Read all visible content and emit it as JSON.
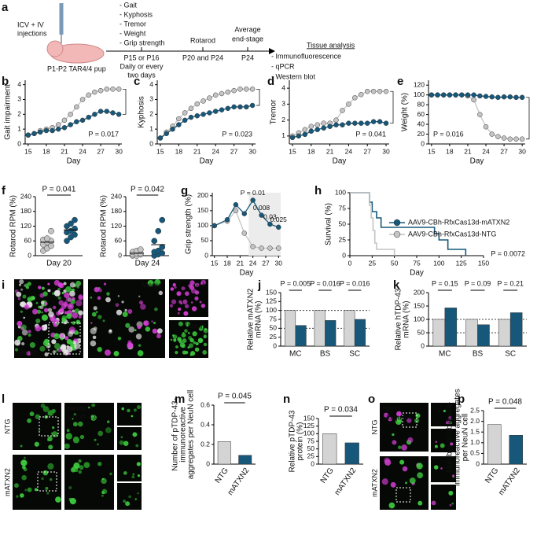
{
  "panels": [
    "a",
    "b",
    "c",
    "d",
    "e",
    "f",
    "g",
    "h",
    "i",
    "j",
    "k",
    "l",
    "m",
    "n",
    "o",
    "p"
  ],
  "diagram": {
    "injection": [
      "ICV + IV",
      "injections"
    ],
    "pup": "P1-P2 TAR4/4 pup",
    "measures": [
      "- Gait",
      "- Kyphosis",
      "- Tremor",
      "- Weight",
      "- Grip strength"
    ],
    "start": [
      "P15 or P16",
      "Daily or every",
      "two days"
    ],
    "rotarod": "Rotarod",
    "rotarod_days": "P20 and P24",
    "endstage": [
      "Average",
      "end-stage"
    ],
    "endstage_day": "P24",
    "tissue_title": "Tissue analysis",
    "tissue": [
      "- Immunofluorescence",
      "- qPCR",
      "- Western blot"
    ]
  },
  "micrographs": {
    "i": {
      "labels": [
        "Merge",
        "Merge",
        "HA",
        "NeuN"
      ]
    },
    "l": {
      "rows": [
        "NTG",
        "mATXN2"
      ],
      "channels": [
        "NeuN",
        "pTDP-43"
      ]
    },
    "o": {
      "rows": [
        "NTG",
        "mATXN2"
      ],
      "channels": [
        "NeuN",
        "Ubiquitin"
      ]
    }
  },
  "chart_data": [
    {
      "type": "line",
      "xlabel": "Day",
      "ylabel": [
        "Gait impairment"
      ],
      "x": [
        15,
        16,
        17,
        18,
        19,
        20,
        21,
        22,
        23,
        24,
        25,
        26,
        27,
        28,
        29,
        30
      ],
      "xlim": [
        14.5,
        30.5
      ],
      "xticks": [
        15,
        18,
        21,
        24,
        27,
        30
      ],
      "ylim": [
        0,
        4.3
      ],
      "yticks": [
        0,
        1,
        2,
        3,
        4
      ],
      "series": [
        {
          "color": "#c4c4c4",
          "values": [
            0.6,
            0.7,
            0.9,
            1.0,
            1.1,
            1.3,
            1.6,
            2.0,
            2.5,
            3.0,
            3.3,
            3.5,
            3.6,
            3.7,
            3.7,
            3.7
          ]
        },
        {
          "color": "#17587a",
          "values": [
            0.6,
            0.7,
            0.8,
            0.9,
            0.9,
            1.0,
            1.1,
            1.3,
            1.5,
            1.6,
            1.8,
            2.0,
            2.2,
            2.2,
            2.1,
            2.0
          ]
        }
      ],
      "annotations": [
        "P = 0.017"
      ]
    },
    {
      "type": "line",
      "xlabel": "Day",
      "ylabel": [
        "Kyphosis"
      ],
      "x": [
        15,
        16,
        17,
        18,
        19,
        20,
        21,
        22,
        23,
        24,
        25,
        26,
        27,
        28,
        29,
        30
      ],
      "xlim": [
        14.5,
        30.5
      ],
      "xticks": [
        15,
        18,
        21,
        24,
        27,
        30
      ],
      "ylim": [
        0,
        4.3
      ],
      "yticks": [
        0,
        1,
        2,
        3,
        4
      ],
      "series": [
        {
          "color": "#c4c4c4",
          "values": [
            0.4,
            0.8,
            1.2,
            1.7,
            2.1,
            2.4,
            2.7,
            2.9,
            3.1,
            3.3,
            3.4,
            3.5,
            3.6,
            3.7,
            3.7,
            3.7
          ]
        },
        {
          "color": "#17587a",
          "values": [
            0.4,
            0.7,
            1.0,
            1.3,
            1.6,
            1.8,
            1.9,
            2.0,
            2.1,
            2.2,
            2.3,
            2.4,
            2.5,
            2.5,
            2.5,
            2.6
          ]
        }
      ],
      "annotations": [
        "P = 0.023"
      ]
    },
    {
      "type": "line",
      "xlabel": "Day",
      "ylabel": [
        "Tremor"
      ],
      "x": [
        15,
        16,
        17,
        18,
        19,
        20,
        21,
        22,
        23,
        24,
        25,
        26,
        27,
        28,
        29,
        30
      ],
      "xlim": [
        14.5,
        30.5
      ],
      "xticks": [
        15,
        18,
        21,
        24,
        27,
        30
      ],
      "ylim": [
        0.5,
        4.5
      ],
      "yticks": [
        1,
        2,
        3,
        4
      ],
      "series": [
        {
          "color": "#c4c4c4",
          "values": [
            1.0,
            1.2,
            1.4,
            1.6,
            1.7,
            1.8,
            1.8,
            2.0,
            2.6,
            3.0,
            3.4,
            3.6,
            3.8,
            3.8,
            3.8,
            3.8
          ]
        },
        {
          "color": "#17587a",
          "values": [
            0.9,
            1.0,
            1.1,
            1.3,
            1.4,
            1.5,
            1.6,
            1.7,
            1.7,
            1.8,
            1.8,
            1.8,
            1.8,
            1.9,
            1.9,
            1.8
          ]
        }
      ],
      "annotations": [
        "P = 0.041"
      ]
    },
    {
      "type": "line",
      "xlabel": "Day",
      "ylabel": [
        "Weight (%)"
      ],
      "x": [
        15,
        16,
        17,
        18,
        19,
        20,
        21,
        22,
        23,
        24,
        25,
        26,
        27,
        28,
        29,
        30
      ],
      "xlim": [
        14.5,
        30.5
      ],
      "xticks": [
        15,
        18,
        21,
        24,
        27,
        30
      ],
      "ylim": [
        0,
        130
      ],
      "yticks": [
        0,
        20,
        40,
        60,
        80,
        100,
        120
      ],
      "series": [
        {
          "color": "#c4c4c4",
          "values": [
            100,
            100,
            100,
            100,
            100,
            100,
            98,
            90,
            60,
            35,
            20,
            15,
            12,
            10,
            10,
            10
          ]
        },
        {
          "color": "#17587a",
          "values": [
            100,
            100,
            100,
            100,
            100,
            100,
            100,
            100,
            98,
            97,
            96,
            95,
            96,
            96,
            95,
            95
          ]
        }
      ],
      "annotations": [
        "P = 0.016"
      ]
    },
    {
      "type": "strip",
      "ylabel": [
        "Rotarod RPM (%)"
      ],
      "categories": [
        "Day 20"
      ],
      "ylim": [
        0,
        240
      ],
      "yticks": [
        0,
        60,
        120,
        180,
        240
      ],
      "series": [
        {
          "color": "#c4c4c4",
          "values": [
            20,
            30,
            40,
            45,
            55,
            60,
            65,
            70,
            100
          ],
          "mean": 55
        },
        {
          "color": "#17587a",
          "values": [
            60,
            75,
            85,
            95,
            100,
            110,
            120,
            130,
            145
          ],
          "mean": 105
        }
      ],
      "annotations": [
        "P = 0.041"
      ]
    },
    {
      "type": "strip",
      "ylabel": [
        "Rotarod RPM (%)"
      ],
      "categories": [
        "Day 24"
      ],
      "ylim": [
        0,
        240
      ],
      "yticks": [
        0,
        60,
        120,
        180,
        240
      ],
      "series": [
        {
          "color": "#c4c4c4",
          "values": [
            0,
            0,
            5,
            5,
            10,
            10,
            15,
            20,
            25
          ],
          "mean": 10
        },
        {
          "color": "#17587a",
          "values": [
            0,
            5,
            10,
            15,
            20,
            35,
            60,
            100,
            145
          ],
          "mean": 45
        }
      ],
      "annotations": [
        "P = 0.042"
      ]
    },
    {
      "type": "line",
      "xlabel": "Day",
      "ylabel": [
        "Grip strength (%)"
      ],
      "x": [
        15,
        18,
        20,
        22,
        24,
        26,
        28,
        30
      ],
      "xlim": [
        14.5,
        30.5
      ],
      "xticks": [
        15,
        18,
        21,
        24,
        27,
        30
      ],
      "ylim": [
        0,
        210
      ],
      "yticks": [
        0,
        50,
        100,
        150,
        200
      ],
      "series": [
        {
          "color": "#c4c4c4",
          "values": [
            100,
            115,
            150,
            75,
            30,
            25,
            25,
            25
          ]
        },
        {
          "color": "#17587a",
          "values": [
            100,
            120,
            170,
            140,
            185,
            135,
            105,
            95
          ]
        }
      ],
      "annotations": [
        "P = 0.01",
        "0.008",
        "0.03",
        "0.025"
      ]
    },
    {
      "type": "step",
      "xlabel": "Day",
      "ylabel": [
        "Survival (%)"
      ],
      "xlim": [
        0,
        150
      ],
      "xticks": [
        0,
        25,
        50,
        75,
        100,
        125,
        150
      ],
      "ylim": [
        0,
        100
      ],
      "yticks": [
        0,
        25,
        50,
        75,
        100
      ],
      "legend": "upper right",
      "series": [
        {
          "name": "AAV9-CBh-RfxCas13d-mATXN2",
          "color": "#17587a",
          "x": [
            0,
            20,
            22,
            25,
            30,
            35,
            90,
            95,
            100,
            110,
            130
          ],
          "values": [
            100,
            100,
            85,
            70,
            60,
            45,
            45,
            35,
            25,
            10,
            0
          ]
        },
        {
          "name": "AAV9-CBh-RfxCas13d-NTG",
          "color": "#c4c4c4",
          "x": [
            0,
            20,
            22,
            24,
            26,
            28,
            30,
            50
          ],
          "values": [
            100,
            100,
            80,
            60,
            40,
            20,
            10,
            0
          ]
        }
      ],
      "annotations": [
        "P = 0.0072"
      ]
    },
    {
      "type": "bar",
      "ylabel": [
        "Relative mATXN2",
        "mRNA (%)"
      ],
      "categories": [
        "MC",
        "BS",
        "SC"
      ],
      "ylim": [
        0,
        150
      ],
      "yticks": [
        0,
        25,
        50,
        75,
        100,
        125,
        150
      ],
      "reference_lines": [
        50,
        100
      ],
      "series": [
        {
          "color": "#d4d4d4",
          "values": [
            100,
            100,
            100
          ]
        },
        {
          "color": "#17587a",
          "values": [
            58,
            72,
            75
          ]
        }
      ],
      "annotations": [
        "P = 0.005",
        "P = 0.016",
        "P = 0.016"
      ]
    },
    {
      "type": "bar",
      "ylabel": [
        "Relative hTDP-43",
        "mRNA (%)"
      ],
      "categories": [
        "MC",
        "BS",
        "SC"
      ],
      "ylim": [
        0,
        200
      ],
      "yticks": [
        0,
        50,
        100,
        150,
        200
      ],
      "reference_lines": [
        50,
        100
      ],
      "series": [
        {
          "color": "#d4d4d4",
          "values": [
            100,
            100,
            100
          ]
        },
        {
          "color": "#17587a",
          "values": [
            143,
            80,
            125
          ]
        }
      ],
      "annotations": [
        "P = 0.15",
        "P = 0.09",
        "P = 0.21"
      ]
    },
    {
      "type": "bar",
      "ylabel": [
        "Number of pTDP-43-",
        "immunoreactive",
        "aggregates per NeuN cell"
      ],
      "categories": [
        "NTG",
        "mATXN2"
      ],
      "values": [
        0.23,
        0.09
      ],
      "colors": [
        "#d4d4d4",
        "#17587a"
      ],
      "ylim": [
        0,
        0.6
      ],
      "yticks": [
        0,
        0.2,
        0.4,
        0.6
      ],
      "annotations": [
        "P = 0.045"
      ]
    },
    {
      "type": "bar",
      "ylabel": [
        "Relative pTDP-43",
        "protein (%)"
      ],
      "categories": [
        "NTG",
        "mATXN2"
      ],
      "values": [
        100,
        70
      ],
      "colors": [
        "#d4d4d4",
        "#17587a"
      ],
      "ylim": [
        0,
        150
      ],
      "yticks": [
        0,
        25,
        50,
        75,
        100,
        125,
        150
      ],
      "annotations": [
        "P = 0.034"
      ]
    },
    {
      "type": "bar",
      "ylabel": [
        "Number of ubiquitin-",
        "immunoreactive aggregates",
        "per NeuN cell"
      ],
      "categories": [
        "NTG",
        "mATXN2"
      ],
      "values": [
        1.85,
        1.35
      ],
      "colors": [
        "#d4d4d4",
        "#17587a"
      ],
      "ylim": [
        0,
        2.5
      ],
      "yticks": [
        0,
        0.5,
        {
          "value": 1,
          "label": "1.0"
        },
        1.5,
        {
          "value": 2,
          "label": "2.0"
        },
        2.5
      ],
      "annotations": [
        "P = 0.048"
      ]
    }
  ]
}
